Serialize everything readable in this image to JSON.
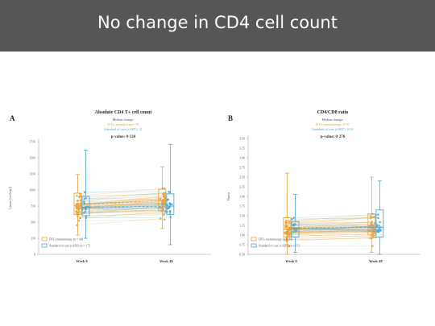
{
  "slide": {
    "title": "No change in CD4 cell count"
  },
  "colors": {
    "dtg": "#e8a33d",
    "soc": "#4aa8d8",
    "median_dtg": "#e8a33d",
    "median_soc": "#4aa8d8"
  },
  "chart_data": [
    {
      "type": "box-scatter-paired",
      "panel_letter": "A",
      "title": "Absolute CD4 T+ cell count",
      "annotation": {
        "heading": "Median change:",
        "dtg_line": "DTG monotherapy: 78",
        "soc_line": "Standard of care (cART): 21",
        "pvalue": "p-value: 0·124"
      },
      "ylabel": "Count [cells/μl]",
      "ylim": [
        0,
        1750
      ],
      "yticks": [
        "0",
        "250",
        "500",
        "750",
        "1000",
        "1250",
        "1500",
        "1750"
      ],
      "categories": [
        "Week 0",
        "Week 48"
      ],
      "legend": [
        "DTG monotherapy (n = 44)",
        "Standard of care (cART) (n = 17)"
      ],
      "legend_position": "bottom-left",
      "series": [
        {
          "name": "DTG monotherapy (n = 44)",
          "median": [
            760,
            840
          ],
          "q1": [
            620,
            680
          ],
          "q3": [
            950,
            1010
          ],
          "whisker_low": [
            300,
            400
          ],
          "whisker_high": [
            1240,
            1360
          ]
        },
        {
          "name": "Standard of care (cART) (n = 17)",
          "median": [
            730,
            750
          ],
          "q1": [
            600,
            620
          ],
          "q3": [
            900,
            940
          ],
          "whisker_low": [
            250,
            150
          ],
          "whisker_high": [
            1620,
            1710
          ]
        }
      ]
    },
    {
      "type": "box-scatter-paired",
      "panel_letter": "B",
      "title": "CD4/CD8 ratio",
      "annotation": {
        "heading": "Median change:",
        "dtg_line": "DTG monotherapy: 0·07",
        "soc_line": "Standard of care (cART): 0·03",
        "pvalue": "p-value: 0·276"
      },
      "ylabel": "Ratio",
      "ylim": [
        0.5,
        3.5
      ],
      "yticks": [
        "0.50",
        "0.75",
        "1.00",
        "1.25",
        "1.50",
        "1.75",
        "2.00",
        "2.25",
        "2.50",
        "2.75",
        "3.00",
        "3.25",
        "3.50"
      ],
      "categories": [
        "Week 0",
        "Week 48"
      ],
      "legend": [
        "DTG monotherapy (n = 44)",
        "Standard of care (cART) (n = 17)"
      ],
      "legend_position": "bottom-left",
      "series": [
        {
          "name": "DTG monotherapy (n = 44)",
          "median": [
            1.15,
            1.22
          ],
          "q1": [
            0.95,
            1.0
          ],
          "q3": [
            1.45,
            1.55
          ],
          "whisker_low": [
            0.5,
            0.55
          ],
          "whisker_high": [
            2.6,
            2.5
          ]
        },
        {
          "name": "Standard of care (cART) (n = 17)",
          "median": [
            1.18,
            1.2
          ],
          "q1": [
            0.95,
            0.95
          ],
          "q3": [
            1.35,
            1.65
          ],
          "whisker_low": [
            0.55,
            0.5
          ],
          "whisker_high": [
            2.05,
            2.4
          ]
        }
      ]
    }
  ]
}
